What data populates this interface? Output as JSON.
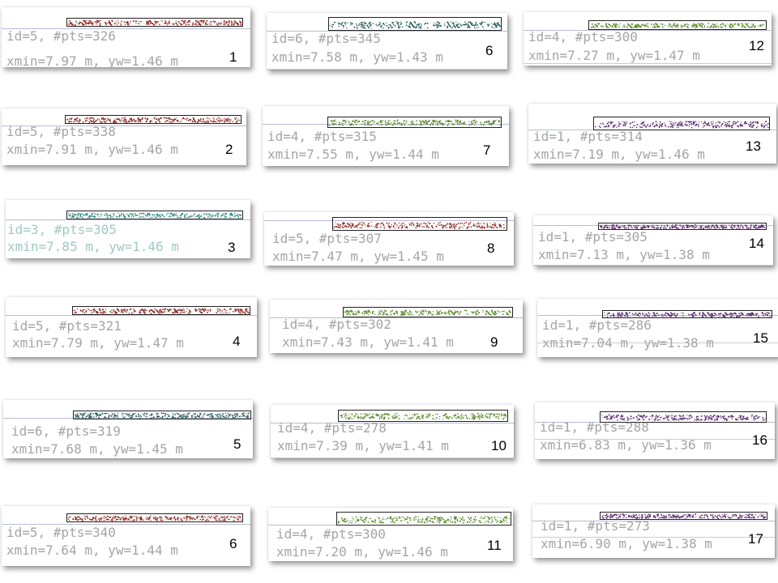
{
  "panels": [
    {
      "line1": "id=5, #pts=326",
      "line2": "xmin=7.97 m, yw=1.46 m",
      "number": "1",
      "color": "#8b2a22"
    },
    {
      "line1": "id=5, #pts=338",
      "line2": "xmin=7.91 m, yw=1.46 m",
      "number": "2",
      "color": "#8b2a22"
    },
    {
      "line1": "id=3, #pts=305",
      "line2": "xmin=7.85 m, yw=1.46 m",
      "number": "3",
      "color": "#2a8b7e"
    },
    {
      "line1": "id=5, #pts=321",
      "line2": "xmin=7.79 m, yw=1.47 m",
      "number": "4",
      "color": "#8b2a22"
    },
    {
      "line1": "id=6, #pts=319",
      "line2": "xmin=7.68 m, yw=1.45 m",
      "number": "5",
      "color": "#1f5a57"
    },
    {
      "line1": "id=5, #pts=340",
      "line2": "xmin=7.64 m, yw=1.44 m",
      "number": "6",
      "color": "#8b2a22"
    },
    {
      "line1": "id=6, #pts=345",
      "line2": "xmin=7.58 m, yw=1.43 m",
      "number": "6",
      "color": "#1f5a57"
    },
    {
      "line1": "id=4, #pts=315",
      "line2": "xmin=7.55 m, yw=1.44 m",
      "number": "7",
      "color": "#5a8b2a"
    },
    {
      "line1": "id=5, #pts=307",
      "line2": "xmin=7.47 m, yw=1.45 m",
      "number": "8",
      "color": "#8b2a22"
    },
    {
      "line1": "id=4, #pts=302",
      "line2": "xmin=7.43 m, yw=1.41 m",
      "number": "9",
      "color": "#5a8b2a"
    },
    {
      "line1": "id=4, #pts=278",
      "line2": "xmin=7.39 m, yw=1.41 m",
      "number": "10",
      "color": "#5a8b2a"
    },
    {
      "line1": "id=4, #pts=300",
      "line2": "xmin=7.20 m, yw=1.46 m",
      "number": "11",
      "color": "#5a8b2a"
    },
    {
      "line1": "id=4, #pts=300",
      "line2": "xmin=7.27 m, yw=1.47 m",
      "number": "12",
      "color": "#5a8b2a"
    },
    {
      "line1": "id=1, #pts=314",
      "line2": "xmin=7.19 m, yw=1.46 m",
      "number": "13",
      "color": "#5a2a6e"
    },
    {
      "line1": "id=1, #pts=305",
      "line2": "xmin=7.13 m, yw=1.38 m",
      "number": "14",
      "color": "#5a2a6e"
    },
    {
      "line1": "id=1, #pts=286",
      "line2": "xmin=7.04 m, yw=1.38 m",
      "number": "15",
      "color": "#5a2a6e"
    },
    {
      "line1": "id=1, #pts=288",
      "line2": "xmin=6.83 m, yw=1.36 m",
      "number": "16",
      "color": "#5a2a6e"
    },
    {
      "line1": "id=1, #pts=273",
      "line2": "xmin=6.90 m, yw=1.38 m",
      "number": "17",
      "color": "#5a2a6e"
    }
  ]
}
